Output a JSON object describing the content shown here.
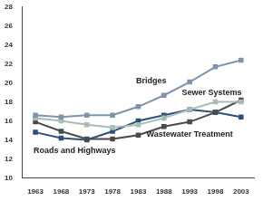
{
  "chart_data": {
    "type": "line",
    "categories": [
      "1963",
      "1968",
      "1973",
      "1978",
      "1983",
      "1988",
      "1993",
      "1998",
      "2003"
    ],
    "series": [
      {
        "name": "Bridges",
        "color": "#7f93ad",
        "marker": "square",
        "values": [
          16.6,
          16.4,
          16.6,
          16.6,
          17.5,
          18.7,
          20.1,
          21.7,
          22.4
        ]
      },
      {
        "name": "Sewer Systems",
        "color": "#a5bfb7",
        "marker": "square",
        "values": [
          16.3,
          16.0,
          15.6,
          15.3,
          15.6,
          16.3,
          17.2,
          18.0,
          18.0
        ]
      },
      {
        "name": "Wastewater Treatment",
        "color": "#4a4a4a",
        "marker": "square",
        "values": [
          15.9,
          14.9,
          14.1,
          14.1,
          14.5,
          15.4,
          15.9,
          16.9,
          18.2
        ]
      },
      {
        "name": "Roads and Highways",
        "color": "#2e4f7a",
        "marker": "square",
        "values": [
          14.8,
          14.2,
          14.0,
          14.9,
          16.0,
          16.6,
          17.2,
          16.9,
          16.4
        ]
      }
    ],
    "ylim": [
      10,
      28
    ],
    "yticks": [
      10,
      12,
      14,
      16,
      18,
      20,
      22,
      24,
      26,
      28
    ],
    "grid": false
  }
}
